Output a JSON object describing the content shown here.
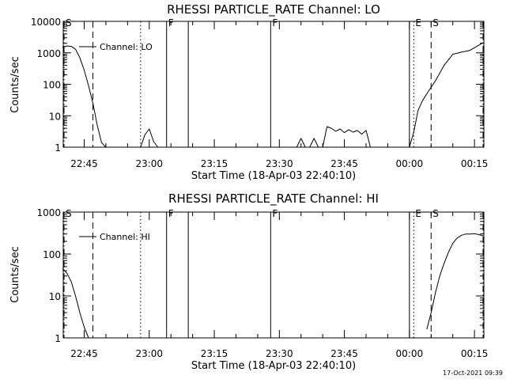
{
  "footer_timestamp": "17-Oct-2021 09:39",
  "chart_data": [
    {
      "type": "line",
      "title": "RHESSI PARTICLE_RATE Channel: LO",
      "xlabel": "Start Time (18-Apr-03 22:40:10)",
      "ylabel": "Counts/sec",
      "y_scale": "log",
      "ylim": [
        1,
        10000
      ],
      "y_ticks": [
        "1",
        "10",
        "100",
        "1000",
        "10000"
      ],
      "x_ticks": [
        "22:45",
        "23:00",
        "23:15",
        "23:30",
        "23:45",
        "00:00",
        "00:15"
      ],
      "legend": "Channel: LO",
      "markers": [
        {
          "label": "S",
          "style": "dash-dot",
          "time": "22:40"
        },
        {
          "label": "",
          "style": "dashed",
          "time": "22:47"
        },
        {
          "label": "",
          "style": "dotted",
          "time": "22:58"
        },
        {
          "label": "F",
          "style": "solid",
          "time": "23:04"
        },
        {
          "label": "",
          "style": "solid",
          "time": "23:09"
        },
        {
          "label": "F",
          "style": "solid",
          "time": "23:28"
        },
        {
          "label": "",
          "style": "solid",
          "time": "00:00"
        },
        {
          "label": "E",
          "style": "dotted",
          "time": "00:01"
        },
        {
          "label": "S",
          "style": "dashed",
          "time": "00:05"
        },
        {
          "label": "",
          "style": "dash-dot",
          "time": "00:17"
        }
      ],
      "series": [
        {
          "segments": [
            [
              [
                "22:40",
                1500
              ],
              [
                "22:41",
                1650
              ],
              [
                "22:42",
                1600
              ],
              [
                "22:43",
                1300
              ],
              [
                "22:44",
                700
              ],
              [
                "22:45",
                280
              ],
              [
                "22:46",
                90
              ],
              [
                "22:47",
                25
              ],
              [
                "22:48",
                5
              ],
              [
                "22:49",
                1.4
              ],
              [
                "22:50",
                1
              ]
            ],
            [
              [
                "22:58",
                1
              ],
              [
                "22:59",
                2.5
              ],
              [
                "23:00",
                3.8
              ],
              [
                "23:01",
                1.5
              ],
              [
                "23:02",
                1
              ]
            ],
            [
              [
                "23:34",
                1
              ],
              [
                "23:35",
                1.9
              ],
              [
                "23:36",
                1
              ]
            ],
            [
              [
                "23:37",
                1
              ],
              [
                "23:38",
                1.9
              ],
              [
                "23:39",
                1
              ]
            ],
            [
              [
                "23:40",
                1
              ],
              [
                "23:41",
                4.5
              ],
              [
                "23:42",
                4.0
              ],
              [
                "23:43",
                3.2
              ],
              [
                "23:44",
                3.8
              ],
              [
                "23:45",
                2.9
              ],
              [
                "23:46",
                3.6
              ],
              [
                "23:47",
                3.0
              ],
              [
                "23:48",
                3.4
              ],
              [
                "23:49",
                2.6
              ],
              [
                "23:50",
                3.4
              ],
              [
                "23:51",
                1
              ]
            ],
            [
              [
                "00:00",
                1
              ],
              [
                "00:01",
                3
              ],
              [
                "00:02",
                15
              ],
              [
                "00:03",
                30
              ],
              [
                "00:04",
                50
              ],
              [
                "00:06",
                130
              ],
              [
                "00:08",
                400
              ],
              [
                "00:10",
                900
              ],
              [
                "00:12",
                1050
              ],
              [
                "00:14",
                1200
              ],
              [
                "00:16",
                1750
              ],
              [
                "00:17",
                2100
              ]
            ]
          ]
        }
      ]
    },
    {
      "type": "line",
      "title": "RHESSI PARTICLE_RATE Channel: HI",
      "xlabel": "Start Time (18-Apr-03 22:40:10)",
      "ylabel": "Counts/sec",
      "y_scale": "log",
      "ylim": [
        1,
        1000
      ],
      "y_ticks": [
        "1",
        "10",
        "100",
        "1000"
      ],
      "x_ticks": [
        "22:45",
        "23:00",
        "23:15",
        "23:30",
        "23:45",
        "00:00",
        "00:15"
      ],
      "legend": "Channel: HI",
      "markers": [
        {
          "label": "S",
          "style": "dash-dot",
          "time": "22:40"
        },
        {
          "label": "",
          "style": "dashed",
          "time": "22:47"
        },
        {
          "label": "",
          "style": "dotted",
          "time": "22:58"
        },
        {
          "label": "F",
          "style": "solid",
          "time": "23:04"
        },
        {
          "label": "",
          "style": "solid",
          "time": "23:09"
        },
        {
          "label": "F",
          "style": "solid",
          "time": "23:28"
        },
        {
          "label": "",
          "style": "solid",
          "time": "00:00"
        },
        {
          "label": "E",
          "style": "dotted",
          "time": "00:01"
        },
        {
          "label": "S",
          "style": "dashed",
          "time": "00:05"
        },
        {
          "label": "",
          "style": "dash-dot",
          "time": "00:17"
        }
      ],
      "series": [
        {
          "segments": [
            [
              [
                "22:40",
                45
              ],
              [
                "22:41",
                35
              ],
              [
                "22:42",
                22
              ],
              [
                "22:43",
                10
              ],
              [
                "22:44",
                4
              ],
              [
                "22:45",
                1.8
              ],
              [
                "22:46",
                1
              ]
            ],
            [
              [
                "00:04",
                1.6
              ],
              [
                "00:05",
                4
              ],
              [
                "00:06",
                12
              ],
              [
                "00:07",
                30
              ],
              [
                "00:08",
                60
              ],
              [
                "00:09",
                110
              ],
              [
                "00:10",
                180
              ],
              [
                "00:11",
                240
              ],
              [
                "00:12",
                280
              ],
              [
                "00:13",
                300
              ],
              [
                "00:14",
                300
              ],
              [
                "00:15",
                305
              ],
              [
                "00:16",
                290
              ],
              [
                "00:17",
                270
              ]
            ]
          ]
        }
      ]
    }
  ]
}
